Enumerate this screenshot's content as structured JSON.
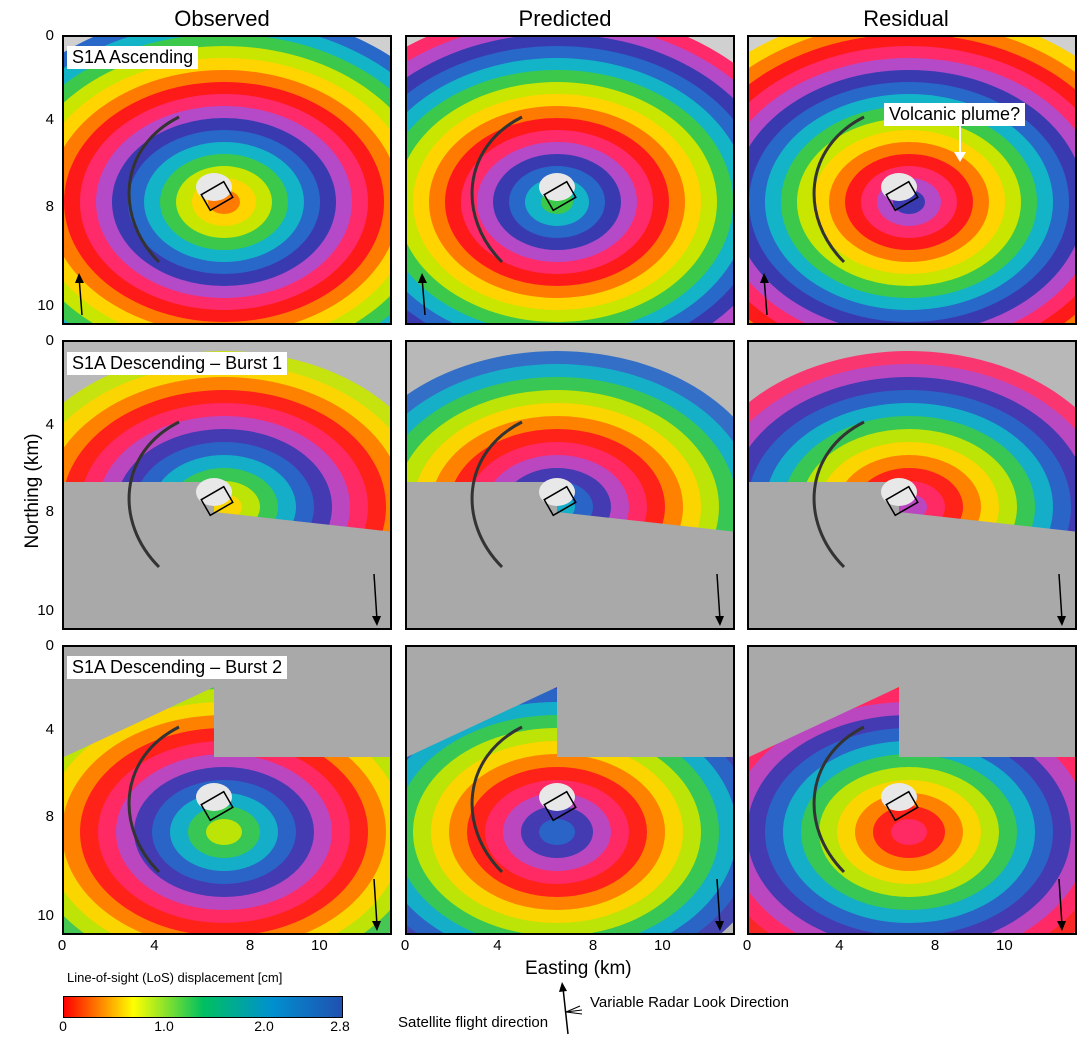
{
  "columns": [
    {
      "title": "Observed"
    },
    {
      "title": "Predicted"
    },
    {
      "title": "Residual"
    }
  ],
  "rows": [
    {
      "label": "S1A Ascending"
    },
    {
      "label": "S1A Descending – Burst 1"
    },
    {
      "label": "S1A Descending – Burst 2"
    }
  ],
  "axes": {
    "y_title": "Northing (km)",
    "x_title": "Easting (km)",
    "y_ticks": [
      "0",
      "4",
      "8",
      "10"
    ],
    "x_ticks": [
      "0",
      "4",
      "8",
      "10"
    ]
  },
  "annotation": {
    "text": "Volcanic plume?"
  },
  "colorbar": {
    "title": "Line-of-sight (LoS) displacement [cm]",
    "ticks": [
      "0",
      "1.0",
      "2.0",
      "2.8"
    ],
    "colors": [
      "#ff0000",
      "#ffff00",
      "#00c060",
      "#0090d0",
      "#2050b0"
    ]
  },
  "legend": {
    "flight": "Satellite flight direction",
    "look": "Variable Radar Look Direction"
  }
}
